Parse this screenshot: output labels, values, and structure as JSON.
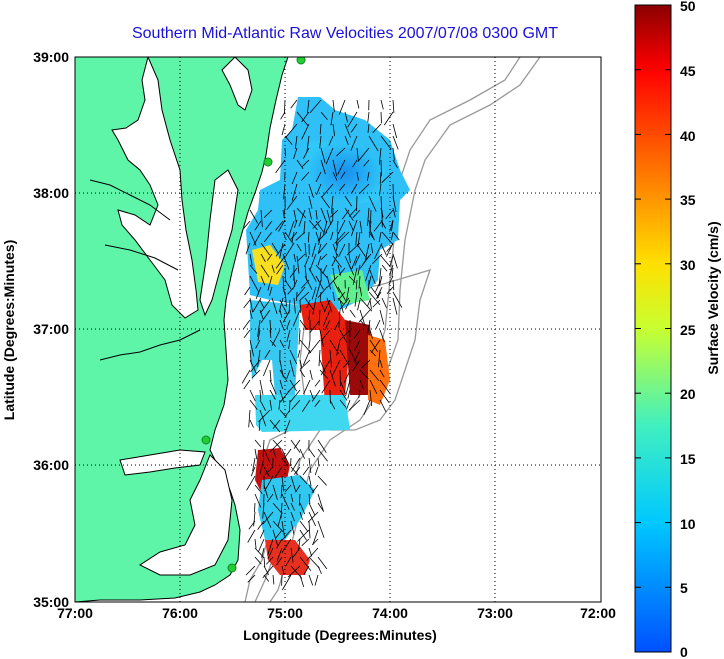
{
  "map": {
    "title": "Southern Mid-Atlantic Raw Velocities 2007/07/08 0300 GMT",
    "xlabel": "Longitude (Degrees:Minutes)",
    "ylabel": "Latitude (Degrees:Minutes)",
    "x_ticks": [
      "77:00",
      "76:00",
      "75:00",
      "74:00",
      "73:00",
      "72:00"
    ],
    "y_ticks": [
      "39:00",
      "38:00",
      "37:00",
      "36:00",
      "35:00"
    ],
    "grid": true,
    "land_color": "#5ff5a8",
    "coast_color": "#000000",
    "bathymetry_color": "#999999",
    "station_color": "#22cc33",
    "lon_range": [
      -77,
      -72
    ],
    "lat_range": [
      35,
      39
    ]
  },
  "colorbar": {
    "label": "Surface Velocity (cm/s)",
    "ticks": [
      "50",
      "45",
      "40",
      "35",
      "30",
      "25",
      "20",
      "15",
      "10",
      "5",
      "0"
    ],
    "range": [
      0,
      50
    ],
    "colors": [
      "#1060ff",
      "#00c8ff",
      "#40f0c0",
      "#ffff00",
      "#ff8000",
      "#ff0000",
      "#800000"
    ]
  }
}
